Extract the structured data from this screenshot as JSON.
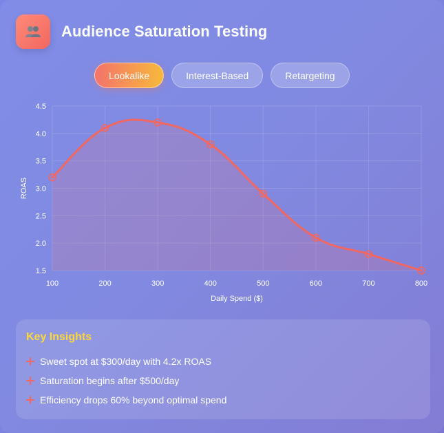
{
  "header": {
    "title": "Audience Saturation Testing",
    "icon": "users-icon"
  },
  "tabs": [
    {
      "label": "Lookalike",
      "active": true
    },
    {
      "label": "Interest-Based",
      "active": false
    },
    {
      "label": "Retargeting",
      "active": false
    }
  ],
  "colors": {
    "line": "#f2675f",
    "accent_yellow": "#fdd835"
  },
  "chart_data": {
    "type": "line",
    "x": [
      100,
      200,
      300,
      400,
      500,
      600,
      700,
      800
    ],
    "series": [
      {
        "values": [
          3.2,
          4.1,
          4.2,
          3.8,
          2.9,
          2.1,
          1.8,
          1.5
        ]
      }
    ],
    "xlabel": "Daily Spend ($)",
    "ylabel": "ROAS",
    "xticks": [
      "100",
      "200",
      "300",
      "400",
      "500",
      "600",
      "700",
      "800"
    ],
    "yticks": [
      "1.5",
      "2.0",
      "2.5",
      "3.0",
      "3.5",
      "4.0",
      "4.5"
    ],
    "xlim": [
      100,
      800
    ],
    "ylim": [
      1.5,
      4.5
    ],
    "grid": true,
    "filled": true
  },
  "insights": {
    "title": "Key Insights",
    "items": [
      "Sweet spot at $300/day with 4.2x ROAS",
      "Saturation begins after $500/day",
      "Efficiency drops 60% beyond optimal spend"
    ]
  }
}
